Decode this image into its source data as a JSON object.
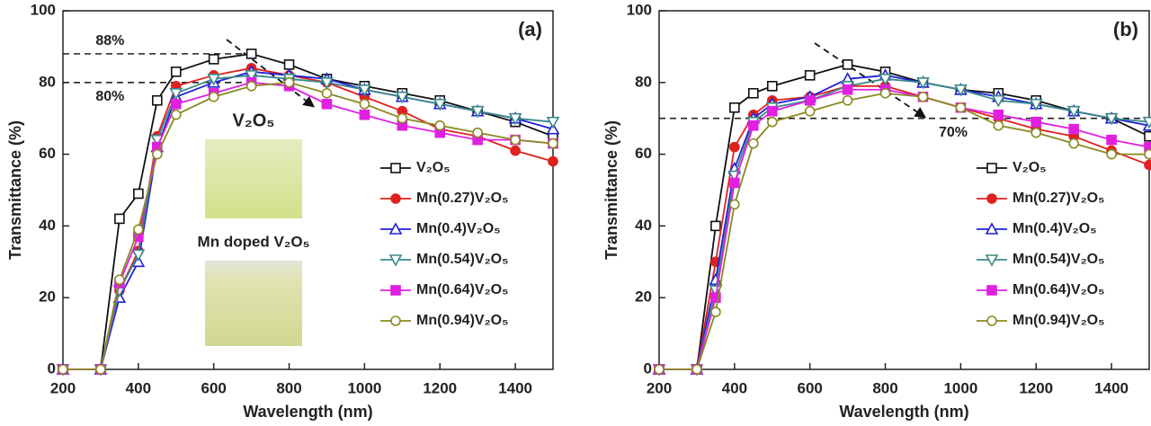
{
  "chart_data": [
    {
      "type": "line",
      "panel_label": "(a)",
      "x_label": "Wavelength (nm)",
      "y_label": "Transmittance (%)",
      "xlim": [
        200,
        1500
      ],
      "ylim": [
        0,
        100
      ],
      "xticks": [
        200,
        400,
        600,
        800,
        1000,
        1200,
        1400
      ],
      "yticks": [
        0,
        20,
        40,
        60,
        80,
        100
      ],
      "legend": "lower right",
      "hlines": [
        {
          "value": 88,
          "label": "88%",
          "x_end": 700
        },
        {
          "value": 80,
          "label": "80%",
          "x_end": 700
        }
      ],
      "inset_labels": [
        "V₂O₅",
        "Mn doped V₂O₅"
      ],
      "x": [
        200,
        300,
        350,
        400,
        450,
        500,
        600,
        700,
        800,
        900,
        1000,
        1100,
        1200,
        1300,
        1400,
        1500
      ],
      "series": [
        {
          "name": "V₂O₅",
          "color": "#111111",
          "marker": "square",
          "filled": false,
          "values": [
            0,
            0,
            42,
            49,
            75,
            83,
            86.5,
            88,
            85,
            81,
            79,
            77,
            75,
            72,
            69,
            65
          ]
        },
        {
          "name": "Mn(0.27)V₂O₅",
          "color": "#e0211f",
          "marker": "circle",
          "filled": true,
          "values": [
            0,
            0,
            22,
            33,
            65,
            79,
            82,
            84,
            82,
            80,
            76,
            72,
            67,
            65,
            61,
            58
          ]
        },
        {
          "name": "Mn(0.4)V₂O₅",
          "color": "#2020d8",
          "marker": "triangle-up",
          "filled": false,
          "values": [
            0,
            0,
            20,
            30,
            62,
            76,
            80,
            83,
            82,
            81,
            78,
            76,
            74,
            72,
            70,
            67
          ]
        },
        {
          "name": "Mn(0.54)V₂O₅",
          "color": "#3a8a8a",
          "marker": "triangle-down",
          "filled": false,
          "values": [
            0,
            0,
            22,
            32,
            64,
            77,
            81,
            82,
            81,
            80,
            78,
            76,
            74,
            72,
            70,
            69
          ]
        },
        {
          "name": "Mn(0.64)V₂O₅",
          "color": "#e020e0",
          "marker": "square",
          "filled": true,
          "values": [
            0,
            0,
            24,
            37,
            62,
            74,
            77,
            80,
            79,
            74,
            71,
            68,
            66,
            64,
            64,
            63
          ]
        },
        {
          "name": "Mn(0.94)V₂O₅",
          "color": "#8a8a20",
          "marker": "circle",
          "filled": false,
          "values": [
            0,
            0,
            25,
            39,
            60,
            71,
            76,
            79,
            80,
            77,
            74,
            70,
            68,
            66,
            64,
            63
          ]
        }
      ]
    },
    {
      "type": "line",
      "panel_label": "(b)",
      "x_label": "Wavelength (nm)",
      "y_label": "Transmittance (%)",
      "xlim": [
        200,
        1500
      ],
      "ylim": [
        0,
        100
      ],
      "xticks": [
        200,
        400,
        600,
        800,
        1000,
        1200,
        1400
      ],
      "yticks": [
        0,
        20,
        40,
        60,
        80,
        100
      ],
      "legend": "lower right",
      "hlines": [
        {
          "value": 70,
          "label": "70%",
          "x_end": 1500
        }
      ],
      "x": [
        200,
        300,
        350,
        400,
        450,
        500,
        600,
        700,
        800,
        900,
        1000,
        1100,
        1200,
        1300,
        1400,
        1500
      ],
      "series": [
        {
          "name": "V₂O₅",
          "color": "#111111",
          "marker": "square",
          "filled": false,
          "values": [
            0,
            0,
            40,
            73,
            77,
            79,
            82,
            85,
            83,
            80,
            78,
            77,
            75,
            72,
            70,
            65
          ]
        },
        {
          "name": "Mn(0.27)V₂O₅",
          "color": "#e0211f",
          "marker": "circle",
          "filled": true,
          "values": [
            0,
            0,
            30,
            62,
            71,
            75,
            76,
            79,
            79,
            76,
            73,
            70,
            67,
            65,
            61,
            57
          ]
        },
        {
          "name": "Mn(0.4)V₂O₅",
          "color": "#2020d8",
          "marker": "triangle-up",
          "filled": false,
          "values": [
            0,
            0,
            25,
            56,
            70,
            74,
            76,
            81,
            82,
            80,
            78,
            76,
            74,
            72,
            70,
            68
          ]
        },
        {
          "name": "Mn(0.54)V₂O₅",
          "color": "#3a8a8a",
          "marker": "triangle-down",
          "filled": false,
          "values": [
            0,
            0,
            22,
            54,
            69,
            73,
            75,
            79,
            81,
            80,
            78,
            75,
            74,
            72,
            70,
            69
          ]
        },
        {
          "name": "Mn(0.64)V₂O₅",
          "color": "#e020e0",
          "marker": "square",
          "filled": true,
          "values": [
            0,
            0,
            20,
            52,
            68,
            72,
            75,
            78,
            78,
            76,
            73,
            71,
            69,
            67,
            64,
            62
          ]
        },
        {
          "name": "Mn(0.94)V₂O₅",
          "color": "#8a8a20",
          "marker": "circle",
          "filled": false,
          "values": [
            0,
            0,
            16,
            46,
            63,
            69,
            72,
            75,
            77,
            76,
            73,
            68,
            66,
            63,
            60,
            60
          ]
        }
      ]
    }
  ]
}
